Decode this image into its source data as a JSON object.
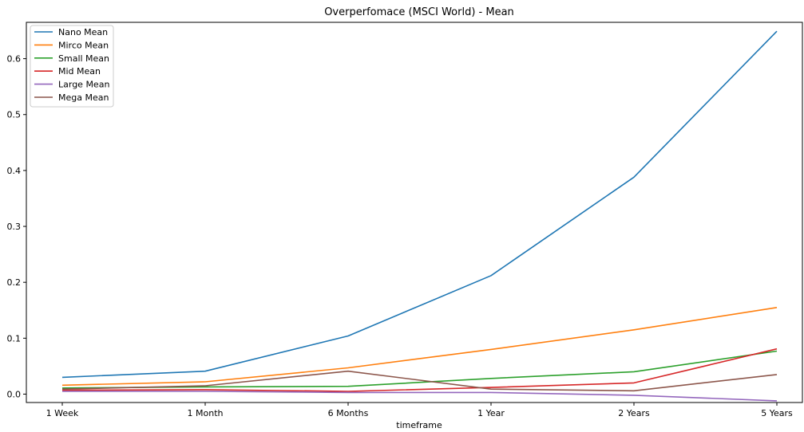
{
  "chart_data": {
    "type": "line",
    "title": "Overperfomace (MSCI World) - Mean",
    "xlabel": "timeframe",
    "ylabel": "",
    "categories": [
      "1 Week",
      "1 Month",
      "6 Months",
      "1 Year",
      "2 Years",
      "5 Years"
    ],
    "ylim": [
      -0.015,
      0.665
    ],
    "yticks": [
      0.0,
      0.1,
      0.2,
      0.3,
      0.4,
      0.5,
      0.6
    ],
    "ytick_labels": [
      "0.0",
      "0.1",
      "0.2",
      "0.3",
      "0.4",
      "0.5",
      "0.6"
    ],
    "grid": false,
    "legend_position": "top-left",
    "series": [
      {
        "name": "Nano Mean",
        "color": "#1f77b4",
        "values": [
          0.03,
          0.041,
          0.104,
          0.212,
          0.388,
          0.649
        ]
      },
      {
        "name": "Mirco Mean",
        "color": "#ff7f0e",
        "values": [
          0.016,
          0.022,
          0.047,
          0.08,
          0.115,
          0.155
        ]
      },
      {
        "name": "Small Mean",
        "color": "#2ca02c",
        "values": [
          0.011,
          0.013,
          0.014,
          0.028,
          0.04,
          0.077
        ]
      },
      {
        "name": "Mid Mean",
        "color": "#d62728",
        "values": [
          0.007,
          0.008,
          0.005,
          0.012,
          0.02,
          0.081
        ]
      },
      {
        "name": "Large Mean",
        "color": "#9467bd",
        "values": [
          0.005,
          0.005,
          0.003,
          0.003,
          -0.002,
          -0.012
        ]
      },
      {
        "name": "Mega Mean",
        "color": "#8c564b",
        "values": [
          0.009,
          0.015,
          0.041,
          0.009,
          0.006,
          0.035
        ]
      }
    ]
  }
}
